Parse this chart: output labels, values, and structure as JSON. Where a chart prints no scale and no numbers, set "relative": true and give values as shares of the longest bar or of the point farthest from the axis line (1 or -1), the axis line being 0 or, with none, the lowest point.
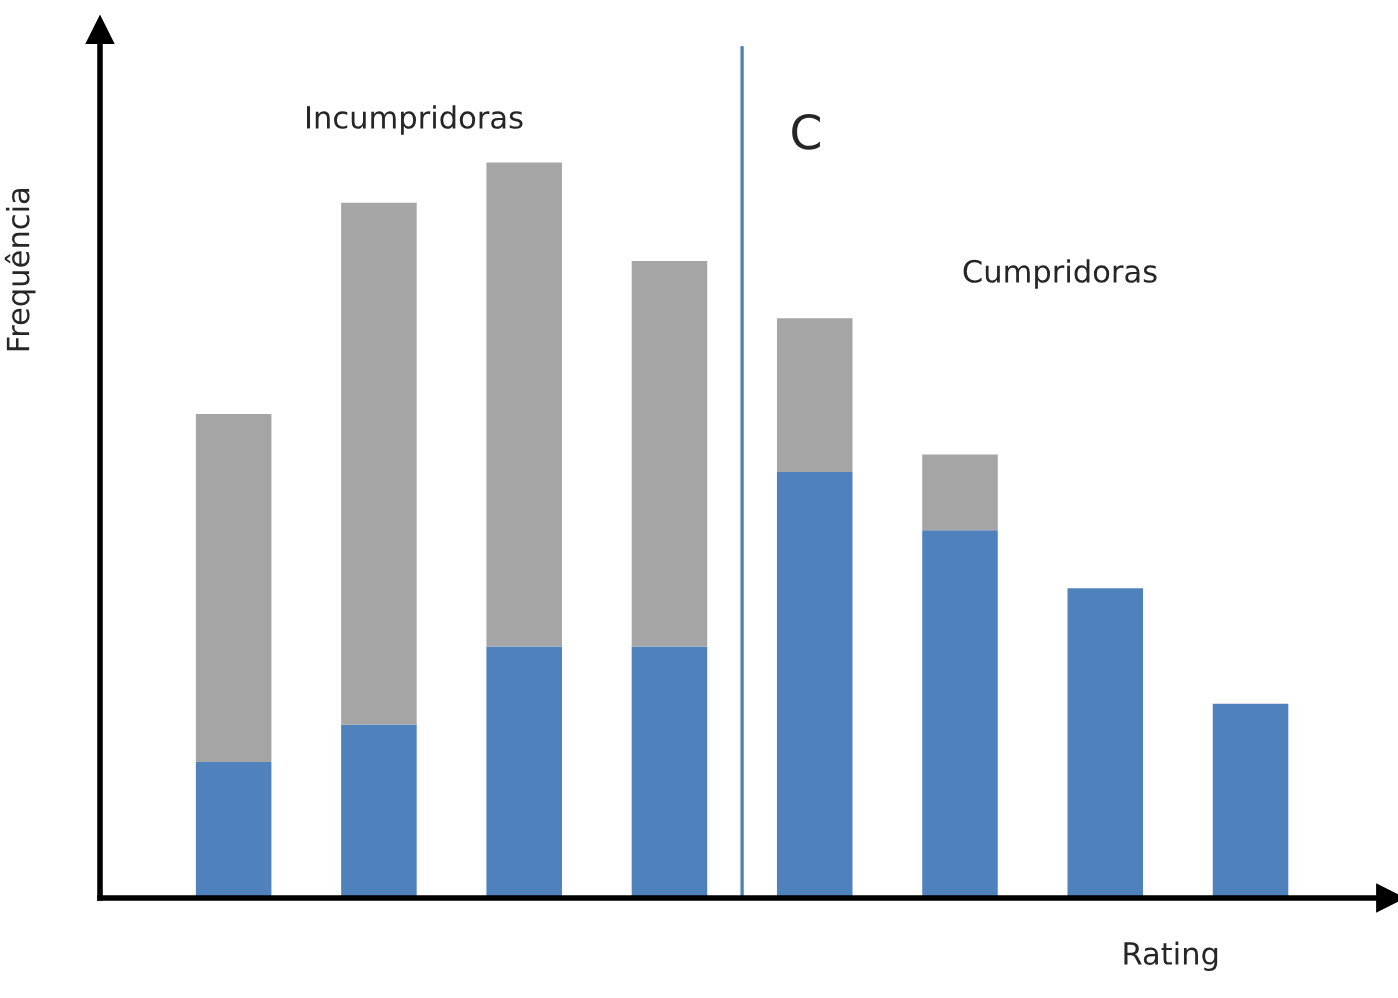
{
  "chart_data": {
    "type": "bar",
    "stacked": true,
    "relative": true,
    "xlabel": "Rating",
    "ylabel": "Frequência",
    "categories": [
      null,
      null,
      null,
      null,
      null,
      null,
      null,
      null
    ],
    "series": [
      {
        "color": "#4f81bd",
        "values": [
          0.185,
          0.236,
          0.342,
          0.342,
          0.579,
          0.5,
          0.421,
          0.264
        ]
      },
      {
        "color": "#a5a5a5",
        "values": [
          0.473,
          0.709,
          0.658,
          0.524,
          0.209,
          0.103,
          null,
          null
        ]
      }
    ],
    "annotations": [
      "Incumpridoras",
      "C",
      "Cumpridoras"
    ],
    "legend": false
  }
}
